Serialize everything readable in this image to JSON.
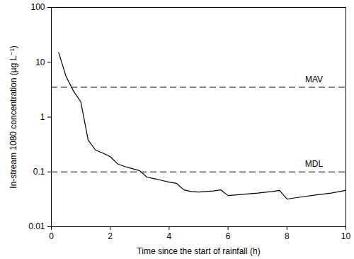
{
  "chart_data": {
    "type": "line",
    "x_label": "Time since the start of rainfall (h)",
    "y_label": "In-stream 1080 concentration (µg L⁻¹)",
    "log": "y",
    "grid": false,
    "xlim": [
      0,
      10
    ],
    "xticks": [
      0,
      2,
      4,
      6,
      8,
      10
    ],
    "ylim": [
      0.01,
      100
    ],
    "yticks": [
      0.01,
      0.1,
      1,
      10,
      100
    ],
    "series": [
      {
        "color": "#000000",
        "line_style": "solid",
        "x": [
          0.25,
          0.5,
          0.75,
          1.0,
          1.25,
          1.5,
          1.75,
          2.0,
          2.25,
          2.5,
          2.75,
          3.0,
          3.25,
          3.5,
          3.75,
          4.0,
          4.25,
          4.5,
          4.75,
          5.0,
          5.5,
          5.75,
          6.0,
          6.5,
          7.0,
          7.5,
          7.75,
          8.0,
          8.5,
          9.0,
          9.5,
          10.0
        ],
        "values": [
          15,
          5.5,
          3.0,
          1.9,
          0.38,
          0.25,
          0.22,
          0.19,
          0.14,
          0.125,
          0.115,
          0.105,
          0.08,
          0.075,
          0.07,
          0.065,
          0.062,
          0.047,
          0.044,
          0.043,
          0.045,
          0.047,
          0.037,
          0.039,
          0.041,
          0.044,
          0.046,
          0.032,
          0.035,
          0.038,
          0.041,
          0.046
        ]
      }
    ],
    "hlines": [
      {
        "label": "MAV",
        "value": 3.5,
        "color": "#000000",
        "line_style": "dashed"
      },
      {
        "label": "MDL",
        "value": 0.1,
        "color": "#000000",
        "line_style": "dashed"
      }
    ]
  }
}
